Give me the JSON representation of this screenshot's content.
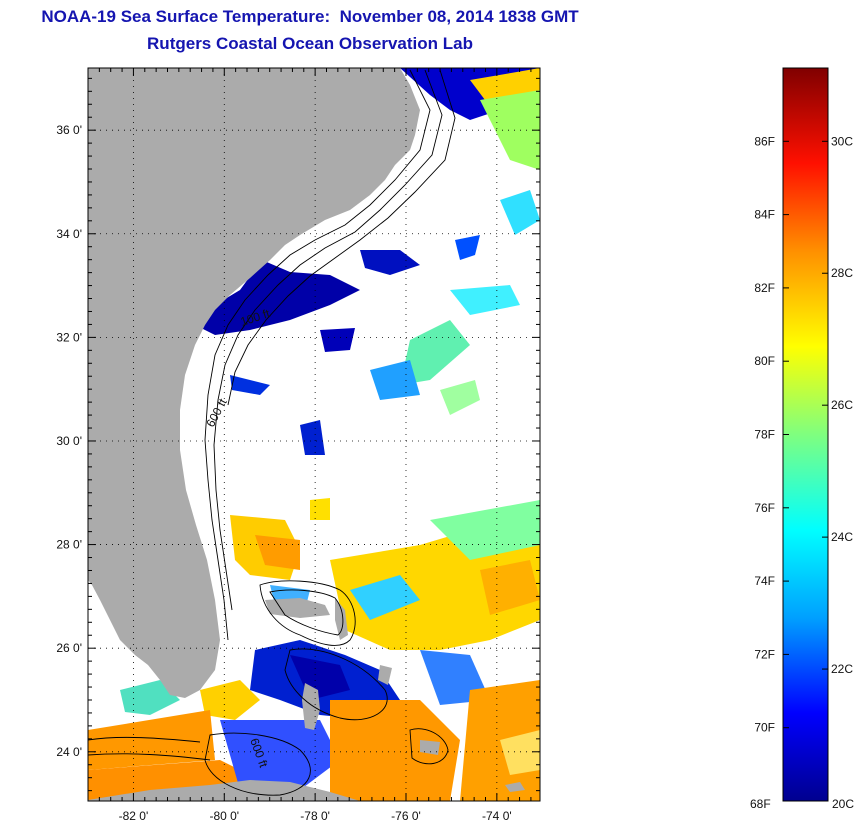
{
  "title_line1": "NOAA-19 Sea Surface Temperature:  November 08, 2014 1838 GMT",
  "title_line2": "Rutgers Coastal Ocean Observation Lab",
  "lat_labels": [
    {
      "lat": 36,
      "text": "36 0'"
    },
    {
      "lat": 34,
      "text": "34 0'"
    },
    {
      "lat": 32,
      "text": "32 0'"
    },
    {
      "lat": 30,
      "text": "30 0'"
    },
    {
      "lat": 28,
      "text": "28 0'"
    },
    {
      "lat": 26,
      "text": "26 0'"
    },
    {
      "lat": 24,
      "text": "24 0'"
    }
  ],
  "lon_labels": [
    {
      "lon": -82,
      "text": "-82 0'"
    },
    {
      "lon": -80,
      "text": "-80 0'"
    },
    {
      "lon": -78,
      "text": "-78 0'"
    },
    {
      "lon": -76,
      "text": "-76 0'"
    },
    {
      "lon": -74,
      "text": "-74 0'"
    }
  ],
  "extent": {
    "lon_min": -83.0,
    "lon_max": -73.05,
    "lat_min": 23.05,
    "lat_max": 37.2
  },
  "contour_labels": [
    "100 ft",
    "600 ft",
    "600 ft"
  ],
  "colorbar": {
    "min_f": 68,
    "max_f": 88,
    "bottom_left_label": "68F",
    "bottom_right_label": "20C",
    "fahrenheit_ticks": [
      "86F",
      "84F",
      "82F",
      "80F",
      "78F",
      "76F",
      "74F",
      "72F",
      "70F"
    ],
    "celsius_ticks": [
      "30C",
      "28C",
      "26C",
      "24C",
      "22C"
    ],
    "colors": [
      "#00008f",
      "#0000ff",
      "#00a0ff",
      "#00ffff",
      "#7fff7f",
      "#ffff00",
      "#ff9000",
      "#ff1000",
      "#800000"
    ]
  },
  "colors": {
    "title": "#1515b0",
    "land": "#ababab",
    "cloud": "#ffffff"
  }
}
